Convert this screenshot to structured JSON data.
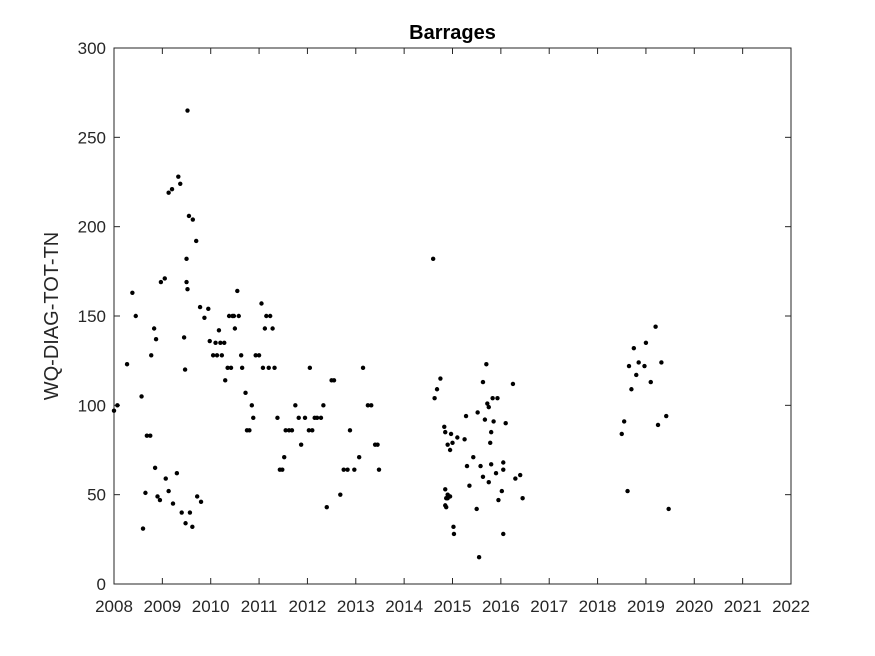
{
  "chart_data": {
    "type": "scatter",
    "title": "Barrages",
    "xlabel": "",
    "ylabel": "WQ-DIAG-TOT-TN",
    "xlim": [
      2008,
      2022
    ],
    "ylim": [
      0,
      300
    ],
    "x_ticks": [
      2008,
      2009,
      2010,
      2011,
      2012,
      2013,
      2014,
      2015,
      2016,
      2017,
      2018,
      2019,
      2020,
      2021,
      2022
    ],
    "x_tick_labels": [
      "2008",
      "2009",
      "2010",
      "2011",
      "2012",
      "2013",
      "2014",
      "2015",
      "2016",
      "2017",
      "2018",
      "2019",
      "2020",
      "2021",
      "2022"
    ],
    "y_ticks": [
      0,
      50,
      100,
      150,
      200,
      250,
      300
    ],
    "y_tick_labels": [
      "0",
      "50",
      "100",
      "150",
      "200",
      "250",
      "300"
    ],
    "grid": false,
    "marker_color": "#000000",
    "series": [
      {
        "points": [
          [
            2008.0,
            97
          ],
          [
            2008.07,
            100
          ],
          [
            2008.27,
            123
          ],
          [
            2008.38,
            163
          ],
          [
            2008.45,
            150
          ],
          [
            2008.57,
            105
          ],
          [
            2008.6,
            31
          ],
          [
            2008.65,
            51
          ],
          [
            2008.68,
            83
          ],
          [
            2008.75,
            83
          ],
          [
            2008.77,
            128
          ],
          [
            2008.83,
            143
          ],
          [
            2008.85,
            65
          ],
          [
            2008.87,
            137
          ],
          [
            2008.9,
            49
          ],
          [
            2008.95,
            47
          ],
          [
            2008.97,
            169
          ],
          [
            2009.05,
            171
          ],
          [
            2009.07,
            59
          ],
          [
            2009.13,
            52
          ],
          [
            2009.13,
            219
          ],
          [
            2009.2,
            221
          ],
          [
            2009.22,
            45
          ],
          [
            2009.3,
            62
          ],
          [
            2009.33,
            228
          ],
          [
            2009.37,
            224
          ],
          [
            2009.4,
            40
          ],
          [
            2009.45,
            138
          ],
          [
            2009.47,
            120
          ],
          [
            2009.48,
            34
          ],
          [
            2009.5,
            182
          ],
          [
            2009.5,
            169
          ],
          [
            2009.52,
            265
          ],
          [
            2009.52,
            165
          ],
          [
            2009.55,
            206
          ],
          [
            2009.57,
            40
          ],
          [
            2009.62,
            32
          ],
          [
            2009.63,
            204
          ],
          [
            2009.7,
            192
          ],
          [
            2009.72,
            49
          ],
          [
            2009.78,
            155
          ],
          [
            2009.8,
            46
          ],
          [
            2009.87,
            149
          ],
          [
            2009.95,
            154
          ],
          [
            2009.98,
            136
          ],
          [
            2010.05,
            128
          ],
          [
            2010.1,
            135
          ],
          [
            2010.13,
            128
          ],
          [
            2010.17,
            142
          ],
          [
            2010.2,
            135
          ],
          [
            2010.23,
            128
          ],
          [
            2010.28,
            135
          ],
          [
            2010.3,
            114
          ],
          [
            2010.35,
            121
          ],
          [
            2010.38,
            150
          ],
          [
            2010.42,
            121
          ],
          [
            2010.45,
            150
          ],
          [
            2010.48,
            150
          ],
          [
            2010.5,
            143
          ],
          [
            2010.55,
            164
          ],
          [
            2010.58,
            150
          ],
          [
            2010.63,
            128
          ],
          [
            2010.65,
            121
          ],
          [
            2010.72,
            107
          ],
          [
            2010.75,
            86
          ],
          [
            2010.8,
            86
          ],
          [
            2010.85,
            100
          ],
          [
            2010.88,
            93
          ],
          [
            2010.93,
            128
          ],
          [
            2011.0,
            128
          ],
          [
            2011.05,
            157
          ],
          [
            2011.08,
            121
          ],
          [
            2011.12,
            143
          ],
          [
            2011.15,
            150
          ],
          [
            2011.2,
            121
          ],
          [
            2011.23,
            150
          ],
          [
            2011.28,
            143
          ],
          [
            2011.32,
            121
          ],
          [
            2011.38,
            93
          ],
          [
            2011.43,
            64
          ],
          [
            2011.48,
            64
          ],
          [
            2011.52,
            71
          ],
          [
            2011.55,
            86
          ],
          [
            2011.62,
            86
          ],
          [
            2011.68,
            86
          ],
          [
            2011.75,
            100
          ],
          [
            2011.82,
            93
          ],
          [
            2011.87,
            78
          ],
          [
            2011.95,
            93
          ],
          [
            2012.03,
            86
          ],
          [
            2012.05,
            121
          ],
          [
            2012.1,
            86
          ],
          [
            2012.15,
            93
          ],
          [
            2012.2,
            93
          ],
          [
            2012.28,
            93
          ],
          [
            2012.33,
            100
          ],
          [
            2012.4,
            43
          ],
          [
            2012.5,
            114
          ],
          [
            2012.55,
            114
          ],
          [
            2012.68,
            50
          ],
          [
            2012.75,
            64
          ],
          [
            2012.83,
            64
          ],
          [
            2012.88,
            86
          ],
          [
            2012.97,
            64
          ],
          [
            2013.07,
            71
          ],
          [
            2013.15,
            121
          ],
          [
            2013.25,
            100
          ],
          [
            2013.32,
            100
          ],
          [
            2013.4,
            78
          ],
          [
            2013.45,
            78
          ],
          [
            2013.48,
            64
          ],
          [
            2014.6,
            182
          ],
          [
            2014.63,
            104
          ],
          [
            2014.68,
            109
          ],
          [
            2014.75,
            115
          ],
          [
            2014.83,
            88
          ],
          [
            2014.85,
            85
          ],
          [
            2014.85,
            53
          ],
          [
            2014.85,
            44
          ],
          [
            2014.87,
            43
          ],
          [
            2014.87,
            48
          ],
          [
            2014.9,
            50
          ],
          [
            2014.9,
            48
          ],
          [
            2014.92,
            49
          ],
          [
            2014.95,
            49
          ],
          [
            2014.9,
            78
          ],
          [
            2014.95,
            75
          ],
          [
            2014.97,
            84
          ],
          [
            2015.0,
            79
          ],
          [
            2015.02,
            32
          ],
          [
            2015.03,
            28
          ],
          [
            2015.1,
            82
          ],
          [
            2015.25,
            81
          ],
          [
            2015.28,
            94
          ],
          [
            2015.3,
            66
          ],
          [
            2015.35,
            55
          ],
          [
            2015.43,
            71
          ],
          [
            2015.5,
            42
          ],
          [
            2015.52,
            96
          ],
          [
            2015.55,
            15
          ],
          [
            2015.58,
            66
          ],
          [
            2015.63,
            113
          ],
          [
            2015.63,
            60
          ],
          [
            2015.67,
            92
          ],
          [
            2015.7,
            123
          ],
          [
            2015.72,
            101
          ],
          [
            2015.75,
            57
          ],
          [
            2015.75,
            99
          ],
          [
            2015.78,
            79
          ],
          [
            2015.8,
            85
          ],
          [
            2015.8,
            67
          ],
          [
            2015.83,
            104
          ],
          [
            2015.85,
            91
          ],
          [
            2015.9,
            62
          ],
          [
            2015.93,
            104
          ],
          [
            2015.95,
            47
          ],
          [
            2016.02,
            52
          ],
          [
            2016.05,
            28
          ],
          [
            2016.05,
            68
          ],
          [
            2016.05,
            64
          ],
          [
            2016.1,
            90
          ],
          [
            2016.25,
            112
          ],
          [
            2016.3,
            59
          ],
          [
            2016.4,
            61
          ],
          [
            2016.45,
            48
          ],
          [
            2018.5,
            84
          ],
          [
            2018.55,
            91
          ],
          [
            2018.62,
            52
          ],
          [
            2018.65,
            122
          ],
          [
            2018.7,
            109
          ],
          [
            2018.75,
            132
          ],
          [
            2018.8,
            117
          ],
          [
            2018.85,
            124
          ],
          [
            2018.97,
            122
          ],
          [
            2019.0,
            135
          ],
          [
            2019.1,
            113
          ],
          [
            2019.2,
            144
          ],
          [
            2019.25,
            89
          ],
          [
            2019.32,
            124
          ],
          [
            2019.42,
            94
          ],
          [
            2019.47,
            42
          ]
        ]
      }
    ]
  }
}
